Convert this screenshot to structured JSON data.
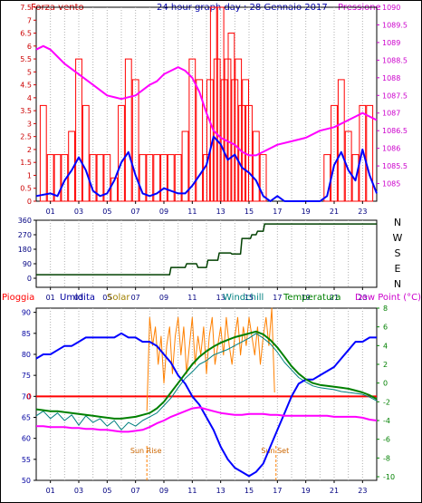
{
  "chart_data": [
    {
      "type": "bar",
      "title": "24 hour graph day : 28 Gennaio 2017",
      "left_label": "Forza vento",
      "right_label": "Pressione",
      "left_ticks": [
        "0",
        "0.5",
        "1",
        "1.5",
        "2",
        "2.5",
        "3",
        "3.5",
        "4",
        "4.5",
        "5",
        "5.5",
        "6",
        "6.5",
        "7",
        "7.5"
      ],
      "right_ticks": [
        "1085",
        "1085.5",
        "1086",
        "1086.5",
        "1087",
        "1087.5",
        "1088",
        "1088.5",
        "1089",
        "1089.5",
        "1090"
      ],
      "x_ticks": [
        "01",
        "03",
        "05",
        "07",
        "09",
        "11",
        "13",
        "15",
        "17",
        "19",
        "21",
        "23"
      ],
      "ylim_left": [
        0,
        7.5
      ],
      "ylim_right": [
        1084.5,
        1090
      ],
      "colors": {
        "gust": "#ff0000",
        "wind": "#0000ff",
        "pressure": "#ff00ff",
        "axis_left": "#cc0000",
        "axis_right": "#cc00cc"
      },
      "pressure": {
        "x": [
          0,
          0.5,
          1,
          1.5,
          2,
          3,
          4,
          5,
          6,
          7,
          8,
          8.5,
          9,
          10,
          10.5,
          11,
          11.5,
          12,
          12.5,
          13,
          13.5,
          14,
          14.5,
          15,
          15.5,
          16,
          17,
          18,
          19,
          20,
          21,
          22,
          22.5,
          23,
          23.5,
          24
        ],
        "y": [
          1088.8,
          1088.9,
          1088.8,
          1088.6,
          1088.4,
          1088.1,
          1087.8,
          1087.5,
          1087.4,
          1087.5,
          1087.8,
          1087.9,
          1088.1,
          1088.3,
          1088.2,
          1088.0,
          1087.6,
          1087.0,
          1086.5,
          1086.3,
          1086.2,
          1086.1,
          1085.9,
          1085.8,
          1085.8,
          1085.9,
          1086.1,
          1086.2,
          1086.3,
          1086.5,
          1086.6,
          1086.8,
          1086.9,
          1087.0,
          1086.9,
          1086.8
        ]
      },
      "wind_speed": {
        "x": [
          0,
          1,
          1.5,
          2,
          2.5,
          3,
          3.5,
          4,
          4.5,
          5,
          5.5,
          6,
          6.5,
          7,
          7.5,
          8,
          8.5,
          9,
          9.5,
          10,
          10.5,
          11,
          11.5,
          12,
          12.5,
          13,
          13.5,
          14,
          14.5,
          15,
          15.5,
          16,
          16.5,
          17,
          17.5,
          18,
          18.5,
          19,
          19.5,
          20,
          20.5,
          21,
          21.5,
          22,
          22.5,
          23,
          23.5,
          24
        ],
        "y": [
          0.2,
          0.3,
          0.2,
          0.8,
          1.2,
          1.7,
          1.2,
          0.4,
          0.2,
          0.3,
          0.8,
          1.5,
          1.9,
          1.0,
          0.3,
          0.2,
          0.3,
          0.5,
          0.4,
          0.3,
          0.3,
          0.6,
          1.0,
          1.4,
          2.5,
          2.2,
          1.6,
          1.8,
          1.3,
          1.1,
          0.8,
          0.2,
          0.0,
          0.2,
          0.0,
          0.0,
          0.0,
          0.0,
          0.0,
          0.0,
          0.2,
          1.4,
          1.9,
          1.2,
          0.8,
          2.0,
          1.0,
          0.3
        ]
      },
      "gust_bars": {
        "x": [
          0.5,
          1,
          1.5,
          2,
          2.5,
          3,
          3.5,
          4,
          4.5,
          5,
          5.5,
          6,
          6.5,
          7,
          7.5,
          8,
          8.5,
          9,
          9.5,
          10,
          10.5,
          11,
          11.5,
          12,
          12.25,
          12.5,
          12.75,
          13,
          13.25,
          13.5,
          13.75,
          14,
          14.25,
          14.5,
          14.75,
          15,
          15.5,
          16,
          20.5,
          21,
          21.5,
          22,
          22.5,
          23,
          23.5
        ],
        "y": [
          3.7,
          1.8,
          1.8,
          1.8,
          2.7,
          5.5,
          3.7,
          1.8,
          1.8,
          1.8,
          0.9,
          3.7,
          5.5,
          4.7,
          1.8,
          1.8,
          1.8,
          1.8,
          1.8,
          1.8,
          2.7,
          5.5,
          4.7,
          1.8,
          4.7,
          7.5,
          5.5,
          7.5,
          4.7,
          5.5,
          6.5,
          4.7,
          5.5,
          3.7,
          4.7,
          3.7,
          2.7,
          1.8,
          1.8,
          3.7,
          4.7,
          2.7,
          1.8,
          3.7,
          3.7
        ]
      }
    },
    {
      "type": "line",
      "right_labels": [
        "N",
        "W",
        "S",
        "E",
        "N"
      ],
      "left_ticks": [
        "0",
        "90",
        "180",
        "270",
        "360"
      ],
      "ylim": [
        0,
        360
      ],
      "x_ticks": [
        "01",
        "03",
        "05",
        "07",
        "09",
        "11",
        "13",
        "15",
        "17",
        "19",
        "21",
        "23"
      ],
      "color": "#004000",
      "direction": {
        "x": [
          0,
          9.4,
          9.5,
          10.5,
          10.6,
          11.3,
          11.4,
          12,
          12.1,
          12.8,
          12.9,
          13.7,
          13.8,
          14.4,
          14.5,
          15.1,
          15.2,
          15.5,
          15.6,
          16,
          16.1,
          24
        ],
        "y": [
          22,
          22,
          67,
          67,
          90,
          90,
          67,
          67,
          112,
          112,
          157,
          157,
          150,
          150,
          247,
          247,
          270,
          270,
          292,
          292,
          337,
          337
        ]
      }
    },
    {
      "type": "line",
      "header": [
        "Pioggia",
        "Umidita",
        "Solar",
        "Windchill",
        "Temperatura",
        "Dew Point (°C)"
      ],
      "left_ticks": [
        "50",
        "55",
        "60",
        "65",
        "70",
        "75",
        "80",
        "85",
        "90"
      ],
      "right_ticks": [
        "-10",
        "-8",
        "-6",
        "-4",
        "-2",
        "0",
        "2",
        "4",
        "6",
        "8"
      ],
      "zero_label": "0",
      "ylim_humidity": [
        50,
        91
      ],
      "ylim_temperature": [
        -10,
        8
      ],
      "x_ticks": [
        "01",
        "03",
        "05",
        "07",
        "09",
        "11",
        "13",
        "15",
        "17",
        "19",
        "21",
        "23"
      ],
      "annotations": {
        "sunrise": "Sun Rise",
        "sunset": "Sun Set"
      },
      "sunrise_hour": 7.8,
      "sunset_hour": 16.9,
      "colors": {
        "rain": "#ff0000",
        "humidity": "#0000ff",
        "solar": "#ff8000",
        "windchill": "#008080",
        "temperature": "#008000",
        "dewpoint": "#ff00ff",
        "header_pioggia": "#ff0000",
        "header_umidita": "#0000a0",
        "header_solar": "#a08000",
        "header_windchill": "#008080",
        "header_temp": "#008000",
        "header_dew": "#cc00cc"
      },
      "humidity": {
        "x": [
          0,
          0.5,
          1,
          1.5,
          2,
          2.5,
          3,
          3.5,
          4,
          4.5,
          5,
          5.5,
          6,
          6.5,
          7,
          7.5,
          8,
          8.5,
          9,
          9.5,
          10,
          10.5,
          11,
          11.5,
          12,
          12.5,
          13,
          13.5,
          14,
          14.5,
          15,
          15.5,
          16,
          16.5,
          17,
          17.5,
          18,
          18.5,
          19,
          19.5,
          20,
          20.5,
          21,
          21.5,
          22,
          22.5,
          23,
          23.5,
          24
        ],
        "y": [
          79,
          80,
          80,
          81,
          82,
          82,
          83,
          84,
          84,
          84,
          84,
          84,
          85,
          84,
          84,
          83,
          83,
          82,
          80,
          78,
          75,
          73,
          70,
          68,
          65,
          62,
          58,
          55,
          53,
          52,
          51,
          52,
          54,
          58,
          62,
          66,
          70,
          73,
          74,
          74,
          75,
          76,
          77,
          79,
          81,
          83,
          83,
          84,
          84
        ]
      },
      "dewpoint": {
        "x": [
          0,
          0.5,
          1,
          1.5,
          2,
          2.5,
          3,
          3.5,
          4,
          4.5,
          5,
          5.5,
          6,
          6.5,
          7,
          7.5,
          8,
          8.5,
          9,
          9.5,
          10,
          10.5,
          11,
          11.5,
          12,
          12.5,
          13,
          13.5,
          14,
          14.5,
          15,
          15.5,
          16,
          16.5,
          17,
          17.5,
          18,
          18.5,
          19,
          19.5,
          20,
          20.5,
          21,
          21.5,
          22,
          22.5,
          23,
          23.5,
          24
        ],
        "y": [
          -4.6,
          -4.6,
          -4.7,
          -4.7,
          -4.7,
          -4.8,
          -4.8,
          -4.9,
          -4.9,
          -5.0,
          -5.0,
          -5.1,
          -5.2,
          -5.2,
          -5.1,
          -5.0,
          -4.7,
          -4.3,
          -4.0,
          -3.6,
          -3.3,
          -3.0,
          -2.7,
          -2.6,
          -2.8,
          -3.0,
          -3.2,
          -3.3,
          -3.4,
          -3.4,
          -3.3,
          -3.3,
          -3.3,
          -3.4,
          -3.4,
          -3.5,
          -3.5,
          -3.5,
          -3.5,
          -3.5,
          -3.5,
          -3.5,
          -3.6,
          -3.6,
          -3.6,
          -3.6,
          -3.7,
          -3.9,
          -4.0
        ]
      },
      "temperature": {
        "x": [
          0,
          0.5,
          1,
          1.5,
          2,
          2.5,
          3,
          3.5,
          4,
          4.5,
          5,
          5.5,
          6,
          6.5,
          7,
          7.5,
          8,
          8.5,
          9,
          9.5,
          10,
          10.5,
          11,
          11.5,
          12,
          12.5,
          13,
          13.5,
          14,
          14.5,
          15,
          15.5,
          16,
          16.5,
          17,
          17.5,
          18,
          18.5,
          19,
          19.5,
          20,
          20.5,
          21,
          21.5,
          22,
          22.5,
          23,
          23.5,
          24
        ],
        "y": [
          -2.8,
          -2.9,
          -3.0,
          -3.0,
          -3.1,
          -3.2,
          -3.3,
          -3.4,
          -3.5,
          -3.6,
          -3.7,
          -3.8,
          -3.8,
          -3.7,
          -3.6,
          -3.4,
          -3.2,
          -2.7,
          -2.0,
          -1.0,
          0.0,
          1.0,
          2.0,
          2.8,
          3.4,
          3.9,
          4.3,
          4.6,
          4.9,
          5.1,
          5.3,
          5.5,
          5.2,
          4.6,
          3.8,
          2.8,
          1.8,
          1.0,
          0.4,
          0.0,
          -0.2,
          -0.3,
          -0.4,
          -0.5,
          -0.6,
          -0.8,
          -1.0,
          -1.3,
          -1.7
        ]
      },
      "windchill": {
        "x": [
          0,
          0.5,
          1,
          1.5,
          2,
          2.5,
          3,
          3.5,
          4,
          4.5,
          5,
          5.5,
          6,
          6.5,
          7,
          7.5,
          8,
          8.5,
          9,
          9.5,
          10,
          10.5,
          11,
          11.5,
          12,
          12.5,
          13,
          13.5,
          14,
          14.5,
          15,
          15.5,
          16,
          16.5,
          17,
          17.5,
          18,
          18.5,
          19,
          19.5,
          20,
          20.5,
          21,
          21.5,
          22,
          22.5,
          23,
          23.5,
          24
        ],
        "y": [
          -3.5,
          -3.0,
          -3.8,
          -3.2,
          -4.0,
          -3.4,
          -4.5,
          -3.5,
          -4.2,
          -3.8,
          -4.6,
          -4.0,
          -5.0,
          -4.2,
          -4.6,
          -4.0,
          -3.6,
          -3.2,
          -2.4,
          -1.6,
          -0.5,
          0.5,
          1.2,
          2.0,
          2.4,
          3.0,
          3.3,
          3.6,
          4.0,
          4.4,
          4.8,
          5.3,
          4.8,
          4.2,
          3.3,
          2.2,
          1.4,
          0.6,
          0.1,
          -0.3,
          -0.5,
          -0.6,
          -0.7,
          -0.9,
          -1.0,
          -1.1,
          -1.2,
          -1.5,
          -1.9
        ]
      },
      "solar": {
        "x": [
          7.8,
          8,
          8.2,
          8.4,
          8.6,
          8.8,
          9,
          9.2,
          9.4,
          9.6,
          9.8,
          10,
          10.2,
          10.4,
          10.6,
          10.8,
          11,
          11.2,
          11.4,
          11.6,
          11.8,
          12,
          12.2,
          12.4,
          12.6,
          12.8,
          13,
          13.2,
          13.4,
          13.6,
          13.8,
          14,
          14.2,
          14.4,
          14.6,
          14.8,
          15,
          15.2,
          15.4,
          15.6,
          15.8,
          16,
          16.2,
          16.4,
          16.6,
          16.8
        ],
        "y": [
          -3,
          7,
          4,
          6,
          2,
          5,
          0,
          4,
          6,
          1,
          5,
          7,
          3,
          6,
          1,
          4,
          7,
          2,
          5,
          3,
          6,
          1,
          5,
          7,
          2,
          4,
          6,
          3,
          7,
          4,
          2,
          5,
          7,
          3,
          6,
          4,
          7,
          5,
          3,
          6,
          2,
          5,
          7,
          4,
          8,
          -1
        ]
      }
    }
  ]
}
